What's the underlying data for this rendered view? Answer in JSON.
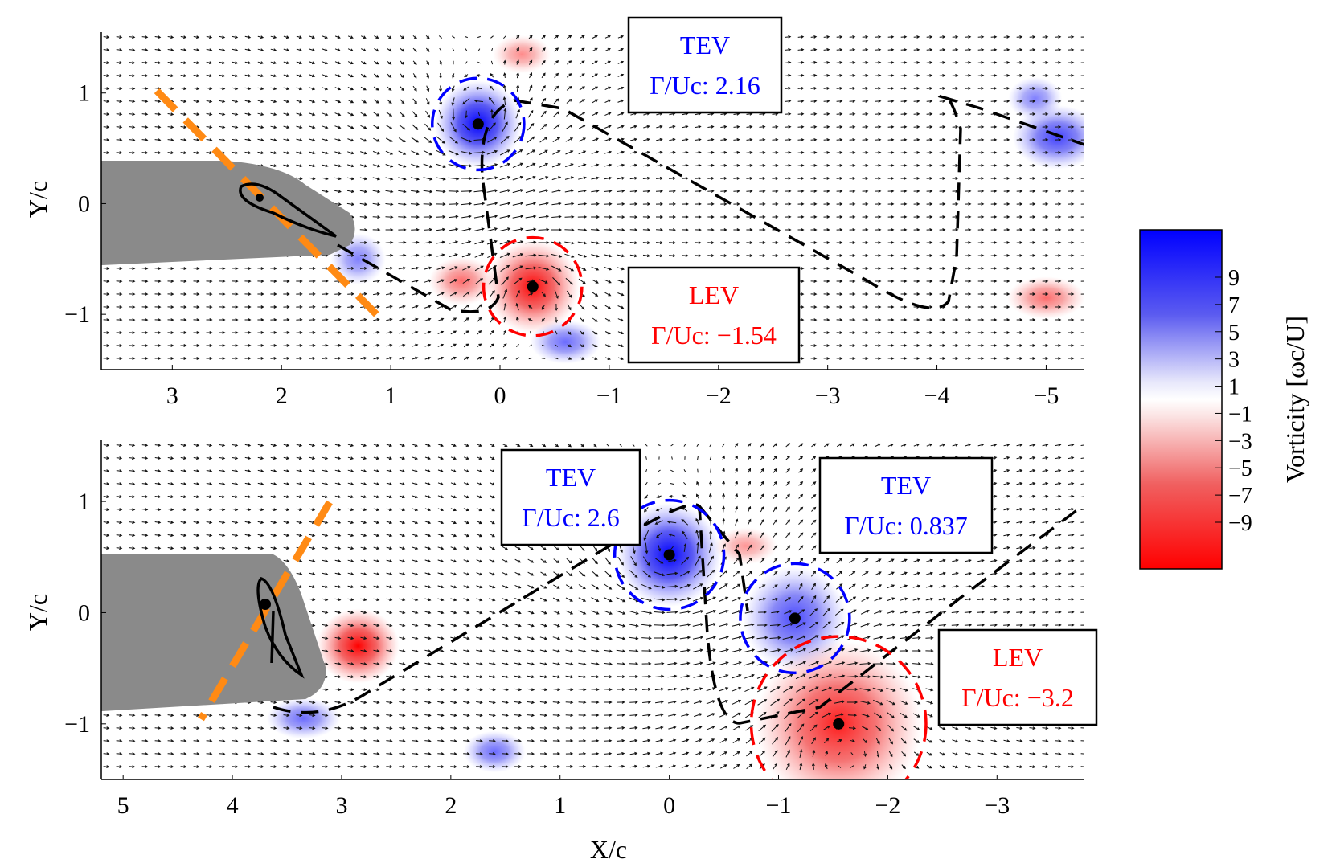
{
  "figure": {
    "colorbar": {
      "label": "Vorticity [ωc/U]",
      "ticks": [
        "9",
        "7",
        "5",
        "3",
        "1",
        "−1",
        "−3",
        "−5",
        "−7",
        "−9"
      ],
      "colors": {
        "positive": "#0000ff",
        "zero": "#ffffff",
        "negative": "#ff0000"
      }
    }
  },
  "chart_data": [
    {
      "type": "heatmap",
      "panel": "top",
      "xlabel": "",
      "ylabel": "Y/c",
      "xlim": [
        3.65,
        -5.35
      ],
      "ylim": [
        -1.5,
        1.55
      ],
      "xticks": [
        "3",
        "2",
        "1",
        "0",
        "−1",
        "−2",
        "−3",
        "−4",
        "−5"
      ],
      "xtick_values": [
        3,
        2,
        1,
        0,
        -1,
        -2,
        -3,
        -4,
        -5
      ],
      "yticks": [
        "1",
        "0",
        "−1"
      ],
      "ytick_values": [
        1,
        0,
        -1
      ],
      "foil_center": [
        2.2,
        0.05
      ],
      "vortices": [
        {
          "type": "TEV",
          "label": "TEV",
          "circulation_label": "Γ/Uc: 2.16",
          "circulation": 2.16,
          "x": 0.2,
          "y": 0.72,
          "radius": 0.42,
          "strength": 10
        },
        {
          "type": "LEV",
          "label": "LEV",
          "circulation_label": "Γ/Uc: −1.54",
          "circulation": -1.54,
          "x": -0.3,
          "y": -0.75,
          "radius": 0.45,
          "strength": -7
        }
      ],
      "weak_patches": [
        {
          "x": -5.1,
          "y": 0.6,
          "strength": 6
        },
        {
          "x": -4.9,
          "y": 0.95,
          "strength": 3
        },
        {
          "x": -5.0,
          "y": -0.85,
          "strength": -4
        },
        {
          "x": 0.35,
          "y": -0.7,
          "strength": -4
        },
        {
          "x": -0.6,
          "y": -1.25,
          "strength": 4
        },
        {
          "x": 1.3,
          "y": -0.5,
          "strength": 3
        },
        {
          "x": -0.2,
          "y": 1.35,
          "strength": -2.5
        }
      ]
    },
    {
      "type": "heatmap",
      "panel": "bottom",
      "xlabel": "X/c",
      "ylabel": "Y/c",
      "xlim": [
        5.2,
        -3.8
      ],
      "ylim": [
        -1.5,
        1.55
      ],
      "xticks": [
        "5",
        "4",
        "3",
        "2",
        "1",
        "0",
        "−1",
        "−2",
        "−3"
      ],
      "xtick_values": [
        5,
        4,
        3,
        2,
        1,
        0,
        -1,
        -2,
        -3
      ],
      "yticks": [
        "1",
        "0",
        "−1"
      ],
      "ytick_values": [
        1,
        0,
        -1
      ],
      "foil_center": [
        3.6,
        0.05
      ],
      "vortices": [
        {
          "type": "TEV",
          "label": "TEV",
          "circulation_label": "Γ/Uc: 2.6",
          "circulation": 2.6,
          "x": 0.0,
          "y": 0.52,
          "radius": 0.5,
          "strength": 10
        },
        {
          "type": "TEV",
          "label": "TEV",
          "circulation_label": "Γ/Uc: 0.837",
          "circulation": 0.837,
          "x": -1.15,
          "y": -0.05,
          "radius": 0.5,
          "strength": 4
        },
        {
          "type": "LEV",
          "label": "LEV",
          "circulation_label": "Γ/Uc: −3.2",
          "circulation": -3.2,
          "x": -1.55,
          "y": -1.0,
          "radius": 0.8,
          "strength": -6
        }
      ],
      "weak_patches": [
        {
          "x": 2.85,
          "y": -0.3,
          "strength": -9
        },
        {
          "x": 3.35,
          "y": -0.95,
          "strength": 4
        },
        {
          "x": 1.6,
          "y": -1.25,
          "strength": 4
        },
        {
          "x": -0.7,
          "y": 0.6,
          "strength": -2
        }
      ]
    }
  ]
}
